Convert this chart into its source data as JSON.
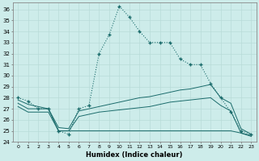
{
  "xlabel": "Humidex (Indice chaleur)",
  "background_color": "#cdecea",
  "grid_color": "#b8dbd8",
  "line_color": "#1a6b6b",
  "xlim": [
    -0.5,
    23.5
  ],
  "ylim": [
    24,
    36.6
  ],
  "yticks": [
    24,
    25,
    26,
    27,
    28,
    29,
    30,
    31,
    32,
    33,
    34,
    35,
    36
  ],
  "xticks": [
    0,
    1,
    2,
    3,
    4,
    5,
    6,
    7,
    8,
    9,
    10,
    11,
    12,
    13,
    14,
    15,
    16,
    17,
    18,
    19,
    20,
    21,
    22,
    23
  ],
  "series1_x": [
    0,
    1,
    2,
    3,
    4,
    5,
    6,
    7,
    8,
    9,
    10,
    11,
    12,
    13,
    14,
    15,
    16,
    17,
    18,
    19,
    20,
    21,
    22,
    23
  ],
  "series1_y": [
    28,
    27.7,
    27.0,
    27.0,
    25.0,
    24.7,
    27.0,
    27.3,
    32.0,
    33.7,
    36.3,
    35.3,
    34.0,
    33.0,
    33.0,
    33.0,
    31.5,
    31.0,
    31.0,
    29.3,
    28.0,
    26.7,
    25.0,
    24.7
  ],
  "series2_x": [
    0,
    1,
    2,
    3,
    4,
    5,
    6,
    7,
    8,
    9,
    10,
    11,
    12,
    13,
    14,
    15,
    16,
    17,
    18,
    19,
    20,
    21,
    22,
    23
  ],
  "series2_y": [
    27.8,
    27.4,
    27.2,
    27.0,
    25.0,
    25.0,
    25.0,
    25.0,
    25.0,
    25.0,
    25.0,
    25.0,
    25.0,
    25.0,
    25.0,
    25.0,
    25.0,
    25.0,
    25.0,
    25.0,
    25.0,
    25.0,
    24.8,
    24.6
  ],
  "series3_x": [
    0,
    1,
    2,
    3,
    4,
    5,
    6,
    7,
    8,
    9,
    10,
    11,
    12,
    13,
    14,
    15,
    16,
    17,
    18,
    19,
    20,
    21,
    22,
    23
  ],
  "series3_y": [
    27.5,
    27.0,
    27.0,
    27.0,
    25.3,
    25.2,
    26.8,
    27.0,
    27.2,
    27.4,
    27.6,
    27.8,
    28.0,
    28.1,
    28.3,
    28.5,
    28.7,
    28.8,
    29.0,
    29.2,
    28.0,
    27.5,
    25.2,
    24.7
  ],
  "series4_x": [
    0,
    1,
    2,
    3,
    4,
    5,
    6,
    7,
    8,
    9,
    10,
    11,
    12,
    13,
    14,
    15,
    16,
    17,
    18,
    19,
    20,
    21,
    22,
    23
  ],
  "series4_y": [
    27.2,
    26.7,
    26.7,
    26.7,
    25.0,
    25.0,
    26.3,
    26.5,
    26.7,
    26.8,
    26.9,
    27.0,
    27.1,
    27.2,
    27.4,
    27.6,
    27.7,
    27.8,
    27.9,
    28.0,
    27.3,
    26.8,
    24.8,
    24.5
  ]
}
